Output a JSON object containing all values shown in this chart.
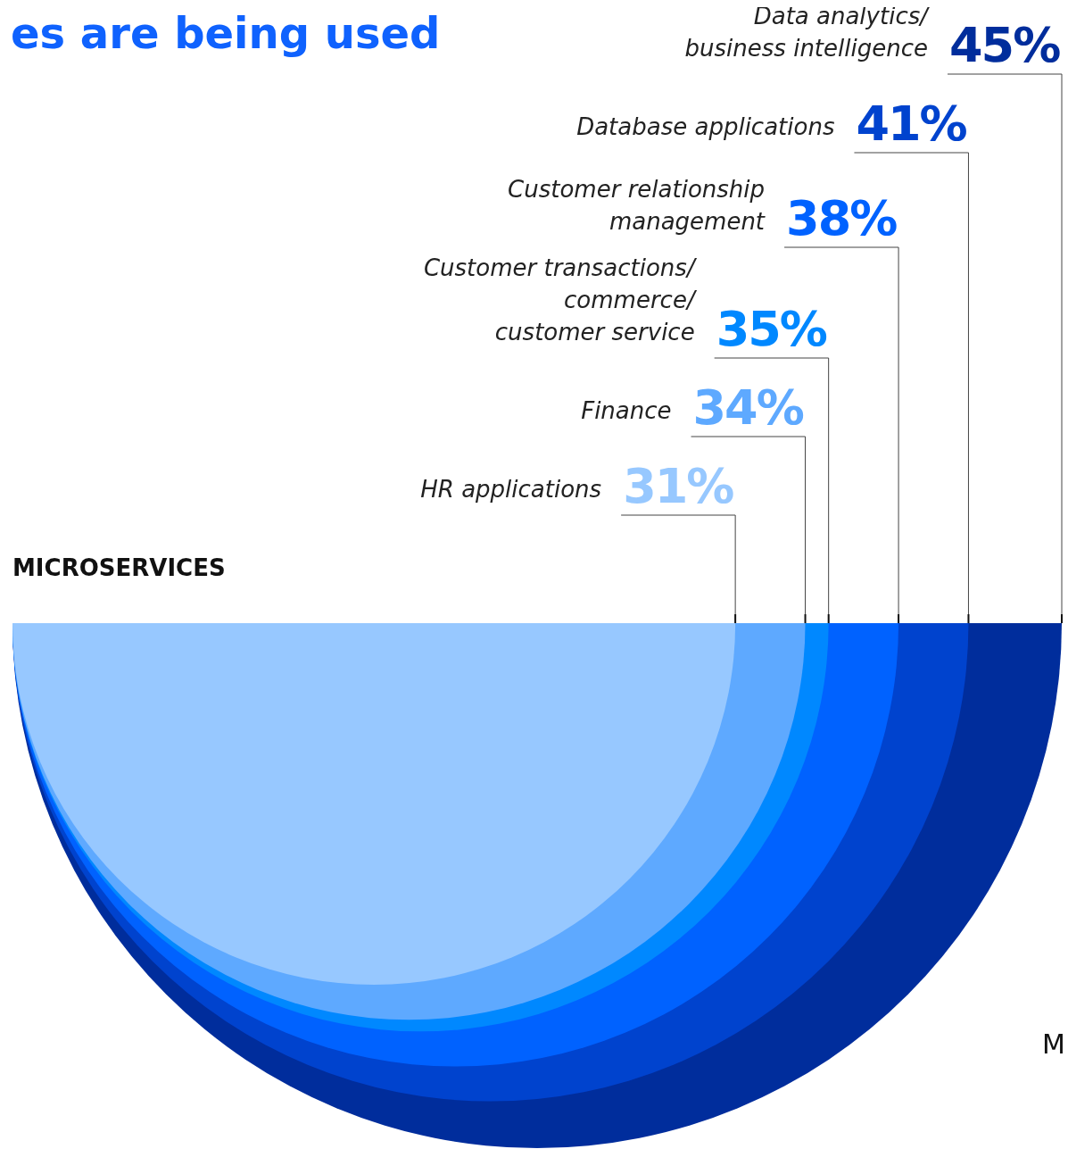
{
  "chart_data": {
    "type": "other",
    "title": "es are being used",
    "subtitle": "MICROSERVICES",
    "categories": [
      "Data analytics/\nbusiness intelligence",
      "Database applications",
      "Customer relationship\nmanagement",
      "Customer transactions/\ncommerce/\ncustomer service",
      "Finance",
      "HR applications"
    ],
    "values": [
      45,
      41,
      38,
      35,
      34,
      31
    ],
    "value_labels": [
      "45%",
      "41%",
      "38%",
      "35%",
      "34%",
      "31%"
    ],
    "colors": [
      "#002d9c",
      "#0043ce",
      "#0062ff",
      "#0088ff",
      "#5ea9ff",
      "#97c8ff"
    ],
    "annotations": [
      "M"
    ]
  }
}
